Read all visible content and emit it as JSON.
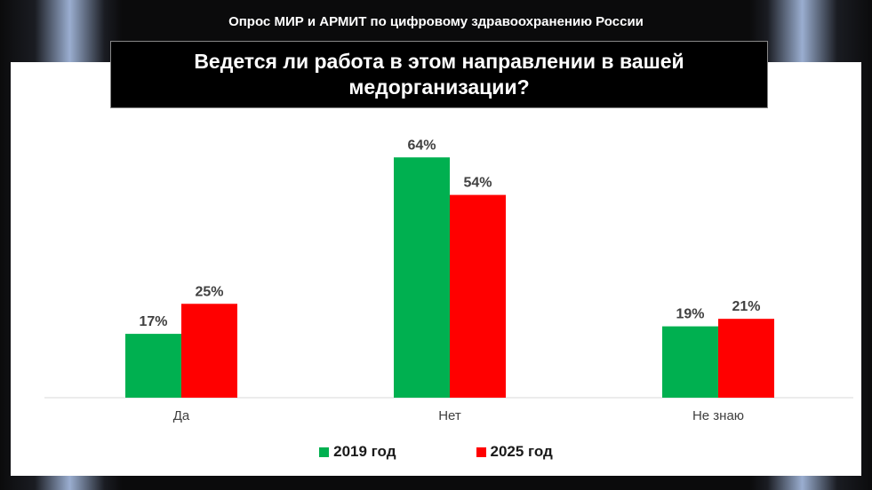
{
  "header": {
    "text": "Опрос  МИР и АРМИТ по цифровому здравоохранению России"
  },
  "title": "Ведется ли работа в этом направлении в вашей медорганизации?",
  "colors": {
    "series_2019": "#00b050",
    "series_2025": "#ff0000",
    "panel": "#ffffff",
    "title_bg": "#000000"
  },
  "chart_data": {
    "type": "bar",
    "categories": [
      "Да",
      "Нет",
      "Не знаю"
    ],
    "series": [
      {
        "name": "2019 год",
        "values": [
          17,
          64,
          19
        ],
        "labels": [
          "17%",
          "64%",
          "19%"
        ]
      },
      {
        "name": "2025 год",
        "values": [
          25,
          54,
          21
        ],
        "labels": [
          "25%",
          "54%",
          "21%"
        ]
      }
    ],
    "ylim": [
      0,
      70
    ],
    "legend_position": "bottom",
    "grid": false
  }
}
